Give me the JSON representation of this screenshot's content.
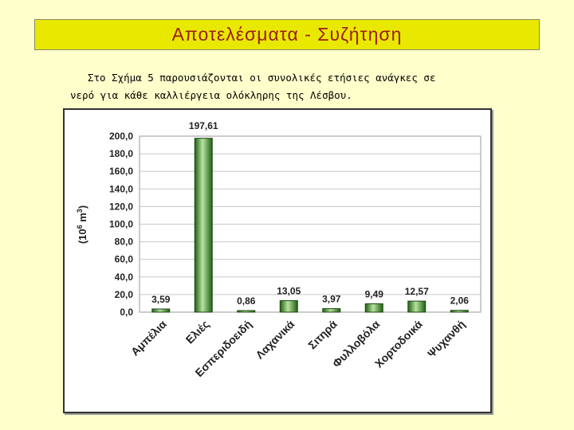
{
  "header": {
    "title": "Αποτελέσματα - Συζήτηση"
  },
  "intro": {
    "line1": "Στο Σχήμα 5 παρουσιάζονται οι συνολικές ετήσιες ανάγκες σε",
    "line2": "νερό για κάθε καλλιέργεια ολόκληρης της Λέσβου."
  },
  "colors": {
    "title_bg": "#e8e800",
    "title_text": "#9b1c1c",
    "background": "#ffffcc",
    "bar_dark": "#1f5e12",
    "bar_light": "#b8e3a0"
  },
  "chart_data": {
    "type": "bar",
    "title": "",
    "ylabel": "(10^6 m^3)",
    "ylabel_parts": {
      "prefix": "(10",
      "exp1": "6",
      "mid": " m",
      "exp2": "3",
      "suffix": ")"
    },
    "ylim": [
      0,
      200
    ],
    "yticks": [
      0,
      20,
      40,
      60,
      80,
      100,
      120,
      140,
      160,
      180,
      200
    ],
    "ytick_labels": [
      "0,0",
      "20,0",
      "40,0",
      "60,0",
      "80,0",
      "100,0",
      "120,0",
      "140,0",
      "160,0",
      "180,0",
      "200,0"
    ],
    "grid": true,
    "categories": [
      "Αμπέλια",
      "Ελιές",
      "Εσπεριδοειδή",
      "Λαχανικά",
      "Σιτηρά",
      "Φυλλοβόλα",
      "Χορτοδοικά",
      "Ψυχανθή"
    ],
    "values": [
      3.59,
      197.61,
      0.86,
      13.05,
      3.97,
      9.49,
      12.57,
      2.06
    ],
    "value_labels": [
      "3,59",
      "197,61",
      "0,86",
      "13,05",
      "3,97",
      "9,49",
      "12,57",
      "2,06"
    ]
  }
}
